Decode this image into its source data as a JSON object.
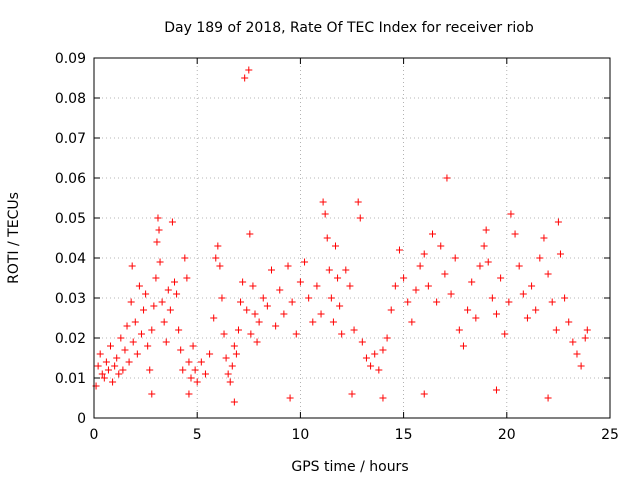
{
  "chart_data": {
    "type": "scatter",
    "title": "Day 189 of 2018, Rate Of TEC Index for receiver riob",
    "xlabel": "GPS time / hours",
    "ylabel": "ROTI / TECUs",
    "xlim": [
      0,
      25
    ],
    "ylim": [
      0,
      0.09
    ],
    "xticks": [
      0,
      5,
      10,
      15,
      20,
      25
    ],
    "xtick_labels": [
      "0",
      "5",
      "10",
      "15",
      "20",
      "25"
    ],
    "yticks": [
      0,
      0.01,
      0.02,
      0.03,
      0.04,
      0.05,
      0.06,
      0.07,
      0.08,
      0.09
    ],
    "ytick_labels": [
      "0",
      "0.01",
      "0.02",
      "0.03",
      "0.04",
      "0.05",
      "0.06",
      "0.07",
      "0.08",
      "0.09"
    ],
    "grid": true,
    "marker": "+",
    "marker_color": "#ff0000",
    "series": [
      {
        "name": "ROTI",
        "points": [
          [
            0.1,
            0.008
          ],
          [
            0.2,
            0.013
          ],
          [
            0.3,
            0.016
          ],
          [
            0.4,
            0.011
          ],
          [
            0.5,
            0.01
          ],
          [
            0.6,
            0.014
          ],
          [
            0.7,
            0.012
          ],
          [
            0.8,
            0.018
          ],
          [
            0.9,
            0.009
          ],
          [
            1.0,
            0.013
          ],
          [
            1.1,
            0.015
          ],
          [
            1.2,
            0.011
          ],
          [
            1.3,
            0.02
          ],
          [
            1.4,
            0.012
          ],
          [
            1.5,
            0.017
          ],
          [
            1.6,
            0.023
          ],
          [
            1.7,
            0.014
          ],
          [
            1.8,
            0.029
          ],
          [
            1.85,
            0.038
          ],
          [
            1.9,
            0.019
          ],
          [
            2.0,
            0.024
          ],
          [
            2.1,
            0.016
          ],
          [
            2.2,
            0.033
          ],
          [
            2.3,
            0.021
          ],
          [
            2.4,
            0.027
          ],
          [
            2.5,
            0.031
          ],
          [
            2.6,
            0.018
          ],
          [
            2.7,
            0.012
          ],
          [
            2.8,
            0.022
          ],
          [
            2.9,
            0.028
          ],
          [
            3.0,
            0.035
          ],
          [
            3.05,
            0.044
          ],
          [
            3.1,
            0.05
          ],
          [
            3.15,
            0.047
          ],
          [
            3.2,
            0.039
          ],
          [
            3.3,
            0.029
          ],
          [
            3.4,
            0.024
          ],
          [
            3.5,
            0.019
          ],
          [
            3.6,
            0.032
          ],
          [
            3.7,
            0.027
          ],
          [
            3.8,
            0.049
          ],
          [
            3.9,
            0.034
          ],
          [
            4.0,
            0.031
          ],
          [
            4.1,
            0.022
          ],
          [
            4.2,
            0.017
          ],
          [
            4.3,
            0.012
          ],
          [
            4.4,
            0.04
          ],
          [
            4.5,
            0.035
          ],
          [
            4.6,
            0.014
          ],
          [
            4.7,
            0.01
          ],
          [
            4.8,
            0.018
          ],
          [
            4.9,
            0.012
          ],
          [
            5.0,
            0.009
          ],
          [
            5.2,
            0.014
          ],
          [
            5.4,
            0.011
          ],
          [
            5.6,
            0.016
          ],
          [
            5.8,
            0.025
          ],
          [
            5.9,
            0.04
          ],
          [
            6.0,
            0.043
          ],
          [
            6.1,
            0.038
          ],
          [
            6.2,
            0.03
          ],
          [
            6.3,
            0.021
          ],
          [
            6.4,
            0.015
          ],
          [
            6.5,
            0.011
          ],
          [
            6.6,
            0.009
          ],
          [
            6.7,
            0.013
          ],
          [
            6.8,
            0.018
          ],
          [
            6.9,
            0.016
          ],
          [
            7.0,
            0.022
          ],
          [
            7.1,
            0.029
          ],
          [
            7.2,
            0.034
          ],
          [
            7.3,
            0.085
          ],
          [
            7.4,
            0.027
          ],
          [
            7.5,
            0.087
          ],
          [
            7.55,
            0.046
          ],
          [
            7.6,
            0.021
          ],
          [
            7.7,
            0.033
          ],
          [
            7.8,
            0.026
          ],
          [
            7.9,
            0.019
          ],
          [
            8.0,
            0.024
          ],
          [
            8.2,
            0.03
          ],
          [
            8.4,
            0.028
          ],
          [
            8.6,
            0.037
          ],
          [
            8.8,
            0.023
          ],
          [
            9.0,
            0.032
          ],
          [
            9.2,
            0.026
          ],
          [
            9.4,
            0.038
          ],
          [
            9.6,
            0.029
          ],
          [
            9.8,
            0.021
          ],
          [
            10.0,
            0.034
          ],
          [
            10.2,
            0.039
          ],
          [
            10.4,
            0.03
          ],
          [
            10.6,
            0.024
          ],
          [
            10.8,
            0.033
          ],
          [
            11.0,
            0.026
          ],
          [
            11.1,
            0.054
          ],
          [
            11.2,
            0.051
          ],
          [
            11.3,
            0.045
          ],
          [
            11.4,
            0.037
          ],
          [
            11.5,
            0.03
          ],
          [
            11.6,
            0.024
          ],
          [
            11.7,
            0.043
          ],
          [
            11.8,
            0.035
          ],
          [
            11.9,
            0.028
          ],
          [
            12.0,
            0.021
          ],
          [
            12.2,
            0.037
          ],
          [
            12.4,
            0.033
          ],
          [
            12.6,
            0.022
          ],
          [
            12.8,
            0.054
          ],
          [
            12.9,
            0.05
          ],
          [
            13.0,
            0.019
          ],
          [
            13.2,
            0.015
          ],
          [
            13.4,
            0.013
          ],
          [
            13.6,
            0.016
          ],
          [
            13.8,
            0.012
          ],
          [
            14.0,
            0.017
          ],
          [
            14.2,
            0.02
          ],
          [
            14.4,
            0.027
          ],
          [
            14.6,
            0.033
          ],
          [
            14.8,
            0.042
          ],
          [
            15.0,
            0.035
          ],
          [
            15.2,
            0.029
          ],
          [
            15.4,
            0.024
          ],
          [
            15.6,
            0.032
          ],
          [
            15.8,
            0.038
          ],
          [
            16.0,
            0.041
          ],
          [
            16.2,
            0.033
          ],
          [
            16.4,
            0.046
          ],
          [
            16.6,
            0.029
          ],
          [
            16.8,
            0.043
          ],
          [
            17.0,
            0.036
          ],
          [
            17.1,
            0.06
          ],
          [
            17.3,
            0.031
          ],
          [
            17.5,
            0.04
          ],
          [
            17.7,
            0.022
          ],
          [
            17.9,
            0.018
          ],
          [
            18.1,
            0.027
          ],
          [
            18.3,
            0.034
          ],
          [
            18.5,
            0.025
          ],
          [
            18.7,
            0.038
          ],
          [
            18.9,
            0.043
          ],
          [
            19.0,
            0.047
          ],
          [
            19.1,
            0.039
          ],
          [
            19.3,
            0.03
          ],
          [
            19.5,
            0.026
          ],
          [
            19.7,
            0.035
          ],
          [
            19.9,
            0.021
          ],
          [
            20.1,
            0.029
          ],
          [
            20.2,
            0.051
          ],
          [
            20.4,
            0.046
          ],
          [
            20.6,
            0.038
          ],
          [
            20.8,
            0.031
          ],
          [
            21.0,
            0.025
          ],
          [
            21.2,
            0.033
          ],
          [
            21.4,
            0.027
          ],
          [
            21.6,
            0.04
          ],
          [
            21.8,
            0.045
          ],
          [
            22.0,
            0.036
          ],
          [
            22.2,
            0.029
          ],
          [
            22.4,
            0.022
          ],
          [
            22.5,
            0.049
          ],
          [
            22.6,
            0.041
          ],
          [
            22.8,
            0.03
          ],
          [
            23.0,
            0.024
          ],
          [
            23.2,
            0.019
          ],
          [
            23.4,
            0.016
          ],
          [
            23.6,
            0.013
          ],
          [
            23.8,
            0.02
          ],
          [
            23.9,
            0.022
          ],
          [
            2.8,
            0.006
          ],
          [
            9.5,
            0.005
          ],
          [
            12.5,
            0.006
          ],
          [
            16.0,
            0.006
          ],
          [
            14.0,
            0.005
          ],
          [
            6.8,
            0.004
          ],
          [
            19.5,
            0.007
          ],
          [
            22.0,
            0.005
          ],
          [
            4.6,
            0.006
          ]
        ]
      }
    ]
  }
}
